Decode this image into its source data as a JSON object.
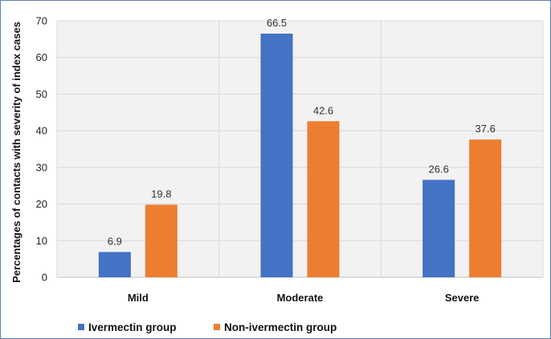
{
  "chart_data": {
    "type": "bar",
    "categories": [
      "Mild",
      "Moderate",
      "Severe"
    ],
    "series": [
      {
        "name": "Ivermectin group",
        "values": [
          6.9,
          66.5,
          26.6
        ],
        "color": "#4472c4"
      },
      {
        "name": "Non-ivermectin group",
        "values": [
          19.8,
          42.6,
          37.6
        ],
        "color": "#ed7d31"
      }
    ],
    "title": "",
    "xlabel": "",
    "ylabel": "Percentages of contacts with severity of index cases",
    "ylim": [
      0,
      70
    ],
    "yticks": [
      0,
      10,
      20,
      30,
      40,
      50,
      60,
      70
    ],
    "grid": true,
    "legend_position": "bottom-left"
  }
}
